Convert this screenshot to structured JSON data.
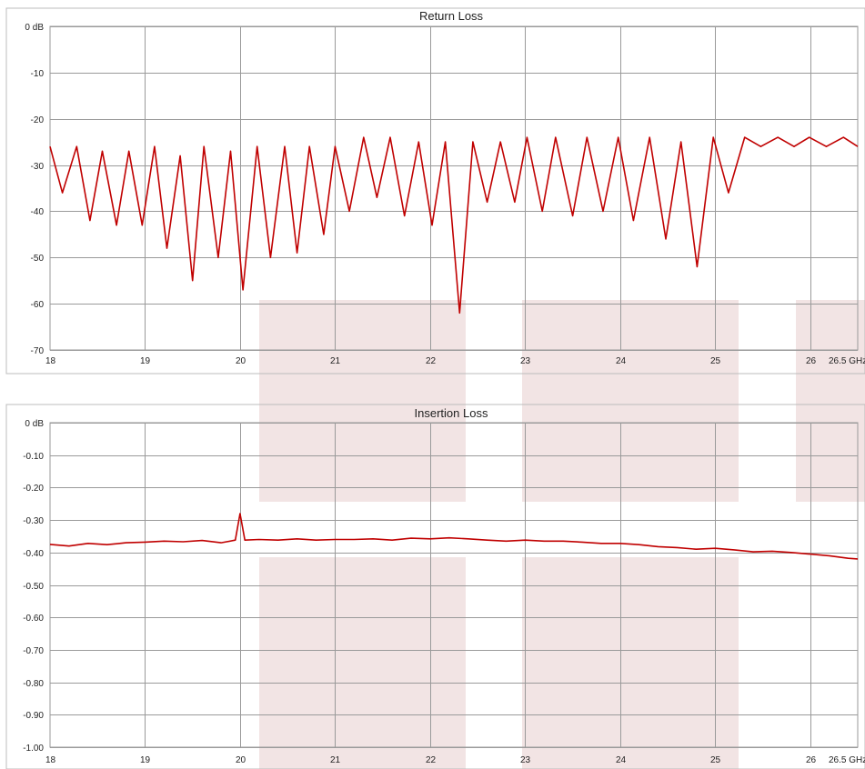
{
  "chart_data": [
    {
      "type": "line",
      "title": "Return Loss",
      "x_unit_label": "26.5 GHz",
      "xlim": [
        18,
        26.5
      ],
      "ylim": [
        -70,
        0
      ],
      "x_ticks": [
        18,
        19,
        20,
        21,
        22,
        23,
        24,
        25,
        26
      ],
      "x_tick_labels": [
        "18",
        "19",
        "20",
        "21",
        "22",
        "23",
        "24",
        "25",
        "26"
      ],
      "y_ticks": [
        0,
        -10,
        -20,
        -30,
        -40,
        -50,
        -60,
        -70
      ],
      "y_tick_labels": [
        "0 dB",
        "-10",
        "-20",
        "-30",
        "-40",
        "-50",
        "-60",
        "-70"
      ],
      "grid": true,
      "line_color": "#c00000",
      "series": [
        {
          "x": [
            18.0,
            18.13,
            18.28,
            18.42,
            18.55,
            18.7,
            18.83,
            18.97,
            19.1,
            19.23,
            19.37,
            19.5,
            19.62,
            19.77,
            19.9,
            20.03,
            20.18,
            20.32,
            20.47,
            20.6,
            20.73,
            20.88,
            21.0,
            21.15,
            21.3,
            21.44,
            21.58,
            21.73,
            21.88,
            22.02,
            22.16,
            22.31,
            22.45,
            22.6,
            22.74,
            22.89,
            23.02,
            23.18,
            23.32,
            23.5,
            23.65,
            23.82,
            23.98,
            24.14,
            24.31,
            24.48,
            24.64,
            24.81,
            24.98,
            25.14,
            25.31,
            25.48,
            25.66,
            25.83,
            25.99,
            26.17,
            26.35,
            26.5
          ],
          "y": [
            -26,
            -36,
            -26,
            -42,
            -27,
            -43,
            -27,
            -43,
            -26,
            -48,
            -28,
            -55,
            -26,
            -50,
            -27,
            -57,
            -26,
            -50,
            -26,
            -49,
            -26,
            -45,
            -26,
            -40,
            -24,
            -37,
            -24,
            -41,
            -25,
            -43,
            -25,
            -62,
            -25,
            -38,
            -25,
            -38,
            -24,
            -40,
            -24,
            -41,
            -24,
            -40,
            -24,
            -42,
            -24,
            -46,
            -25,
            -52,
            -24,
            -36,
            -24,
            -26,
            -24,
            -26,
            -24,
            -26,
            -24,
            -26
          ]
        }
      ]
    },
    {
      "type": "line",
      "title": "Insertion Loss",
      "x_unit_label": "26.5 GHz",
      "xlim": [
        18,
        26.5
      ],
      "ylim": [
        -1.0,
        0
      ],
      "x_ticks": [
        18,
        19,
        20,
        21,
        22,
        23,
        24,
        25,
        26
      ],
      "x_tick_labels": [
        "18",
        "19",
        "20",
        "21",
        "22",
        "23",
        "24",
        "25",
        "26"
      ],
      "y_ticks": [
        0,
        -0.1,
        -0.2,
        -0.3,
        -0.4,
        -0.5,
        -0.6,
        -0.7,
        -0.8,
        -0.9,
        -1.0
      ],
      "y_tick_labels": [
        "0 dB",
        "-0.10",
        "-0.20",
        "-0.30",
        "-0.40",
        "-0.50",
        "-0.60",
        "-0.70",
        "-0.80",
        "-0.90",
        "-1.00"
      ],
      "grid": true,
      "line_color": "#c00000",
      "series": [
        {
          "x": [
            18.0,
            18.2,
            18.4,
            18.6,
            18.8,
            19.0,
            19.2,
            19.4,
            19.6,
            19.8,
            19.95,
            20.0,
            20.05,
            20.2,
            20.4,
            20.6,
            20.8,
            21.0,
            21.2,
            21.4,
            21.6,
            21.8,
            22.0,
            22.2,
            22.4,
            22.6,
            22.8,
            23.0,
            23.2,
            23.4,
            23.6,
            23.8,
            24.0,
            24.2,
            24.4,
            24.6,
            24.8,
            25.0,
            25.2,
            25.4,
            25.6,
            25.8,
            26.0,
            26.2,
            26.4,
            26.5
          ],
          "y": [
            -0.375,
            -0.38,
            -0.372,
            -0.376,
            -0.37,
            -0.368,
            -0.365,
            -0.367,
            -0.363,
            -0.37,
            -0.362,
            -0.28,
            -0.362,
            -0.36,
            -0.362,
            -0.358,
            -0.362,
            -0.36,
            -0.36,
            -0.358,
            -0.362,
            -0.356,
            -0.358,
            -0.355,
            -0.358,
            -0.362,
            -0.365,
            -0.362,
            -0.365,
            -0.365,
            -0.368,
            -0.372,
            -0.372,
            -0.376,
            -0.382,
            -0.385,
            -0.39,
            -0.387,
            -0.392,
            -0.398,
            -0.396,
            -0.4,
            -0.405,
            -0.41,
            -0.418,
            -0.42
          ]
        }
      ]
    }
  ]
}
